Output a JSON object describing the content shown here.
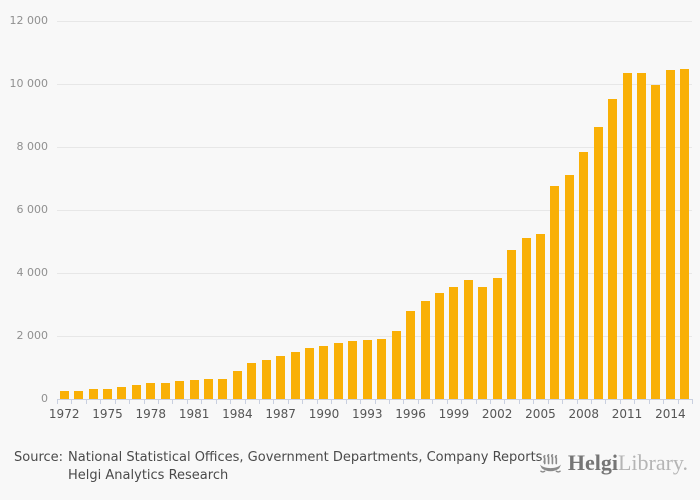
{
  "chart_data": {
    "type": "bar",
    "title": "",
    "xlabel": "",
    "ylabel": "",
    "x": [
      1972,
      1973,
      1974,
      1975,
      1976,
      1977,
      1978,
      1979,
      1980,
      1981,
      1982,
      1983,
      1984,
      1985,
      1986,
      1987,
      1988,
      1989,
      1990,
      1991,
      1992,
      1993,
      1994,
      1995,
      1996,
      1997,
      1998,
      1999,
      2000,
      2001,
      2002,
      2003,
      2004,
      2005,
      2006,
      2007,
      2008,
      2009,
      2010,
      2011,
      2012,
      2013,
      2014,
      2015
    ],
    "values": [
      250,
      240,
      330,
      310,
      390,
      460,
      500,
      500,
      570,
      600,
      640,
      650,
      900,
      1140,
      1250,
      1380,
      1500,
      1630,
      1680,
      1770,
      1840,
      1860,
      1890,
      2160,
      2780,
      3100,
      3360,
      3550,
      3780,
      3550,
      3840,
      4720,
      5110,
      5230,
      6750,
      7100,
      7840,
      8630,
      9530,
      10340,
      10360,
      9960,
      10450,
      10480
    ],
    "ylim": [
      0,
      12000
    ],
    "yticks": [
      0,
      2000,
      4000,
      6000,
      8000,
      10000,
      12000
    ],
    "ytick_labels": [
      "0",
      "2 000",
      "4 000",
      "6 000",
      "8 000",
      "10 000",
      "12 000"
    ],
    "xtick_label_every": 3,
    "grid": "horizontal",
    "legend": "none"
  },
  "footer": {
    "source_label": "Source:",
    "source_line1": "National Statistical Offices, Government Departments, Company Reports,",
    "source_line2": "Helgi Analytics Research"
  },
  "logo": {
    "icon": "helgi-ship-icon",
    "brand_primary": "Helgi",
    "brand_secondary": "Library."
  },
  "colors": {
    "background": "#f8f8f8",
    "bar": "#f9b006",
    "gridline": "#e7e7e7",
    "axis": "#c9d0e0",
    "ytick_label": "#909090",
    "xtick_label": "#555555",
    "footer_text": "#4a4a4a",
    "logo_primary": "#757575",
    "logo_secondary": "#b5b5b5"
  }
}
